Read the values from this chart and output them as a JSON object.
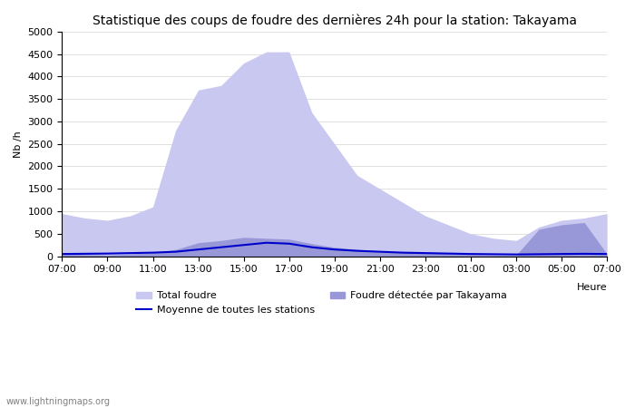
{
  "title": "Statistique des coups de foudre des dernières 24h pour la station: Takayama",
  "xlabel": "Heure",
  "ylabel": "Nb /h",
  "ylim": [
    0,
    5000
  ],
  "yticks": [
    0,
    500,
    1000,
    1500,
    2000,
    2500,
    3000,
    3500,
    4000,
    4500,
    5000
  ],
  "xtick_labels": [
    "07:00",
    "09:00",
    "11:00",
    "13:00",
    "15:00",
    "17:00",
    "19:00",
    "21:00",
    "23:00",
    "01:00",
    "03:00",
    "05:00",
    "07:00"
  ],
  "watermark": "www.lightningmaps.org",
  "color_total": "#c8c8f0",
  "color_station": "#9898d8",
  "color_mean": "#0000cc",
  "total_foudre": [
    950,
    850,
    800,
    900,
    1100,
    2800,
    3700,
    3800,
    4300,
    4550,
    4550,
    3200,
    2500,
    1800,
    1500,
    1200,
    900,
    700,
    500,
    400,
    350,
    650,
    800,
    850,
    950
  ],
  "foudre_station": [
    50,
    40,
    30,
    50,
    80,
    150,
    300,
    350,
    420,
    400,
    380,
    280,
    200,
    150,
    120,
    100,
    80,
    60,
    40,
    30,
    25,
    600,
    700,
    750,
    50
  ],
  "moyenne_stations": [
    50,
    55,
    60,
    70,
    80,
    100,
    150,
    200,
    250,
    300,
    280,
    200,
    150,
    120,
    100,
    80,
    70,
    60,
    50,
    45,
    40,
    45,
    50,
    55,
    50
  ]
}
